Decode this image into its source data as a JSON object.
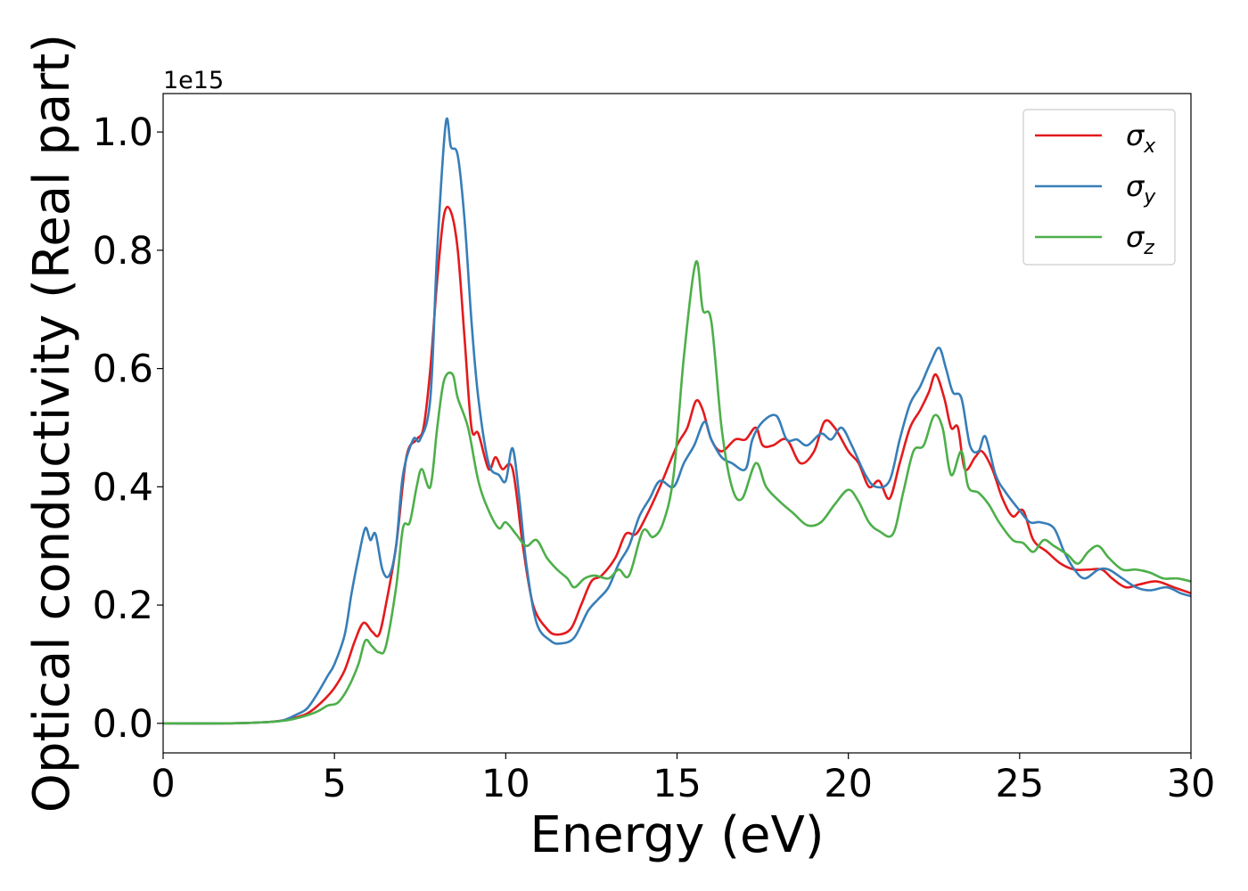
{
  "chart_data": {
    "type": "line",
    "xlabel": "Energy (eV)",
    "ylabel": "Optical conductivity (Real part)",
    "y_offset_text": "1e15",
    "xlim": [
      0,
      30
    ],
    "ylim": [
      -0.05,
      1.065
    ],
    "x_ticks": [
      0,
      5,
      10,
      15,
      20,
      25,
      30
    ],
    "x_tick_labels": [
      "0",
      "5",
      "10",
      "15",
      "20",
      "25",
      "30"
    ],
    "y_ticks": [
      0.0,
      0.2,
      0.4,
      0.6,
      0.8,
      1.0
    ],
    "y_tick_labels": [
      "0.0",
      "0.2",
      "0.4",
      "0.6",
      "0.8",
      "1.0"
    ],
    "grid": false,
    "legend_position": "top-right",
    "series": [
      {
        "name": "σx",
        "label_base": "σ",
        "label_sub": "x",
        "color": "#e41a1c",
        "points": [
          [
            0,
            0
          ],
          [
            2,
            0
          ],
          [
            3,
            0.002
          ],
          [
            3.5,
            0.005
          ],
          [
            4,
            0.012
          ],
          [
            4.3,
            0.02
          ],
          [
            4.7,
            0.04
          ],
          [
            5,
            0.06
          ],
          [
            5.3,
            0.09
          ],
          [
            5.6,
            0.14
          ],
          [
            5.85,
            0.17
          ],
          [
            6.1,
            0.155
          ],
          [
            6.3,
            0.15
          ],
          [
            6.5,
            0.2
          ],
          [
            6.8,
            0.3
          ],
          [
            7.1,
            0.45
          ],
          [
            7.4,
            0.48
          ],
          [
            7.6,
            0.5
          ],
          [
            7.8,
            0.6
          ],
          [
            8.0,
            0.75
          ],
          [
            8.2,
            0.86
          ],
          [
            8.4,
            0.865
          ],
          [
            8.6,
            0.8
          ],
          [
            8.8,
            0.65
          ],
          [
            9.0,
            0.5
          ],
          [
            9.2,
            0.49
          ],
          [
            9.5,
            0.43
          ],
          [
            9.7,
            0.45
          ],
          [
            9.9,
            0.43
          ],
          [
            10.2,
            0.43
          ],
          [
            10.5,
            0.3
          ],
          [
            10.8,
            0.2
          ],
          [
            11.2,
            0.16
          ],
          [
            11.5,
            0.15
          ],
          [
            11.9,
            0.16
          ],
          [
            12.2,
            0.2
          ],
          [
            12.5,
            0.24
          ],
          [
            12.8,
            0.25
          ],
          [
            13.2,
            0.28
          ],
          [
            13.5,
            0.32
          ],
          [
            13.8,
            0.32
          ],
          [
            14.1,
            0.35
          ],
          [
            14.5,
            0.4
          ],
          [
            15.0,
            0.47
          ],
          [
            15.3,
            0.5
          ],
          [
            15.55,
            0.545
          ],
          [
            15.75,
            0.53
          ],
          [
            16.0,
            0.48
          ],
          [
            16.3,
            0.46
          ],
          [
            16.7,
            0.48
          ],
          [
            17.0,
            0.48
          ],
          [
            17.3,
            0.5
          ],
          [
            17.5,
            0.47
          ],
          [
            17.8,
            0.47
          ],
          [
            18.2,
            0.48
          ],
          [
            18.6,
            0.44
          ],
          [
            19.0,
            0.46
          ],
          [
            19.3,
            0.51
          ],
          [
            19.6,
            0.5
          ],
          [
            20.0,
            0.46
          ],
          [
            20.3,
            0.44
          ],
          [
            20.6,
            0.4
          ],
          [
            20.9,
            0.41
          ],
          [
            21.2,
            0.38
          ],
          [
            21.5,
            0.44
          ],
          [
            21.8,
            0.5
          ],
          [
            22.1,
            0.53
          ],
          [
            22.35,
            0.56
          ],
          [
            22.55,
            0.59
          ],
          [
            22.8,
            0.55
          ],
          [
            23.0,
            0.5
          ],
          [
            23.2,
            0.5
          ],
          [
            23.4,
            0.43
          ],
          [
            23.7,
            0.45
          ],
          [
            23.9,
            0.46
          ],
          [
            24.2,
            0.43
          ],
          [
            24.5,
            0.38
          ],
          [
            24.8,
            0.35
          ],
          [
            25.1,
            0.36
          ],
          [
            25.4,
            0.31
          ],
          [
            25.8,
            0.29
          ],
          [
            26.2,
            0.27
          ],
          [
            26.6,
            0.26
          ],
          [
            27.0,
            0.26
          ],
          [
            27.4,
            0.26
          ],
          [
            27.7,
            0.245
          ],
          [
            28.1,
            0.23
          ],
          [
            28.5,
            0.235
          ],
          [
            29.0,
            0.24
          ],
          [
            29.5,
            0.23
          ],
          [
            30,
            0.22
          ]
        ]
      },
      {
        "name": "σy",
        "label_base": "σ",
        "label_sub": "y",
        "color": "#377eb8",
        "points": [
          [
            0,
            0
          ],
          [
            2,
            0
          ],
          [
            3,
            0.002
          ],
          [
            3.5,
            0.005
          ],
          [
            3.9,
            0.015
          ],
          [
            4.2,
            0.025
          ],
          [
            4.5,
            0.05
          ],
          [
            4.8,
            0.08
          ],
          [
            5.0,
            0.1
          ],
          [
            5.3,
            0.15
          ],
          [
            5.5,
            0.22
          ],
          [
            5.7,
            0.28
          ],
          [
            5.9,
            0.33
          ],
          [
            6.05,
            0.31
          ],
          [
            6.2,
            0.32
          ],
          [
            6.4,
            0.26
          ],
          [
            6.6,
            0.25
          ],
          [
            6.8,
            0.3
          ],
          [
            7.0,
            0.42
          ],
          [
            7.3,
            0.48
          ],
          [
            7.5,
            0.48
          ],
          [
            7.8,
            0.55
          ],
          [
            8.0,
            0.8
          ],
          [
            8.25,
            1.015
          ],
          [
            8.4,
            0.975
          ],
          [
            8.6,
            0.96
          ],
          [
            8.8,
            0.85
          ],
          [
            9.0,
            0.68
          ],
          [
            9.2,
            0.55
          ],
          [
            9.5,
            0.44
          ],
          [
            9.8,
            0.42
          ],
          [
            10.0,
            0.41
          ],
          [
            10.2,
            0.465
          ],
          [
            10.4,
            0.38
          ],
          [
            10.6,
            0.27
          ],
          [
            10.9,
            0.17
          ],
          [
            11.3,
            0.14
          ],
          [
            11.6,
            0.135
          ],
          [
            12.0,
            0.145
          ],
          [
            12.4,
            0.19
          ],
          [
            12.7,
            0.21
          ],
          [
            13.0,
            0.23
          ],
          [
            13.3,
            0.27
          ],
          [
            13.6,
            0.3
          ],
          [
            13.9,
            0.35
          ],
          [
            14.2,
            0.38
          ],
          [
            14.5,
            0.41
          ],
          [
            14.9,
            0.4
          ],
          [
            15.2,
            0.44
          ],
          [
            15.5,
            0.47
          ],
          [
            15.8,
            0.51
          ],
          [
            16.0,
            0.48
          ],
          [
            16.3,
            0.45
          ],
          [
            16.6,
            0.44
          ],
          [
            17.0,
            0.43
          ],
          [
            17.2,
            0.48
          ],
          [
            17.5,
            0.51
          ],
          [
            17.9,
            0.52
          ],
          [
            18.2,
            0.48
          ],
          [
            18.5,
            0.48
          ],
          [
            18.8,
            0.47
          ],
          [
            19.2,
            0.49
          ],
          [
            19.5,
            0.48
          ],
          [
            19.8,
            0.5
          ],
          [
            20.1,
            0.47
          ],
          [
            20.5,
            0.42
          ],
          [
            20.8,
            0.4
          ],
          [
            21.2,
            0.41
          ],
          [
            21.5,
            0.48
          ],
          [
            21.8,
            0.54
          ],
          [
            22.1,
            0.57
          ],
          [
            22.4,
            0.61
          ],
          [
            22.65,
            0.635
          ],
          [
            22.85,
            0.6
          ],
          [
            23.05,
            0.56
          ],
          [
            23.3,
            0.55
          ],
          [
            23.55,
            0.47
          ],
          [
            23.8,
            0.46
          ],
          [
            24.0,
            0.485
          ],
          [
            24.3,
            0.42
          ],
          [
            24.6,
            0.39
          ],
          [
            25.0,
            0.36
          ],
          [
            25.3,
            0.34
          ],
          [
            25.6,
            0.34
          ],
          [
            26.0,
            0.33
          ],
          [
            26.3,
            0.29
          ],
          [
            26.6,
            0.26
          ],
          [
            26.9,
            0.245
          ],
          [
            27.3,
            0.26
          ],
          [
            27.6,
            0.26
          ],
          [
            28.0,
            0.245
          ],
          [
            28.4,
            0.23
          ],
          [
            28.8,
            0.225
          ],
          [
            29.3,
            0.23
          ],
          [
            29.7,
            0.22
          ],
          [
            30,
            0.215
          ]
        ]
      },
      {
        "name": "σz",
        "label_base": "σ",
        "label_sub": "z",
        "color": "#4daf4a",
        "points": [
          [
            0,
            0
          ],
          [
            2,
            0
          ],
          [
            3,
            0.002
          ],
          [
            3.6,
            0.005
          ],
          [
            4.0,
            0.01
          ],
          [
            4.5,
            0.02
          ],
          [
            4.8,
            0.03
          ],
          [
            5.1,
            0.035
          ],
          [
            5.4,
            0.06
          ],
          [
            5.7,
            0.1
          ],
          [
            5.9,
            0.14
          ],
          [
            6.1,
            0.13
          ],
          [
            6.3,
            0.12
          ],
          [
            6.5,
            0.13
          ],
          [
            6.8,
            0.23
          ],
          [
            7.0,
            0.33
          ],
          [
            7.2,
            0.34
          ],
          [
            7.4,
            0.4
          ],
          [
            7.55,
            0.43
          ],
          [
            7.8,
            0.4
          ],
          [
            8.0,
            0.5
          ],
          [
            8.2,
            0.58
          ],
          [
            8.45,
            0.59
          ],
          [
            8.6,
            0.55
          ],
          [
            8.9,
            0.5
          ],
          [
            9.2,
            0.41
          ],
          [
            9.5,
            0.36
          ],
          [
            9.8,
            0.33
          ],
          [
            10.0,
            0.34
          ],
          [
            10.3,
            0.32
          ],
          [
            10.6,
            0.3
          ],
          [
            10.9,
            0.31
          ],
          [
            11.2,
            0.28
          ],
          [
            11.5,
            0.26
          ],
          [
            11.8,
            0.245
          ],
          [
            12.0,
            0.23
          ],
          [
            12.3,
            0.245
          ],
          [
            12.6,
            0.25
          ],
          [
            13.0,
            0.245
          ],
          [
            13.3,
            0.26
          ],
          [
            13.6,
            0.25
          ],
          [
            14.0,
            0.325
          ],
          [
            14.3,
            0.315
          ],
          [
            14.6,
            0.34
          ],
          [
            14.9,
            0.42
          ],
          [
            15.2,
            0.62
          ],
          [
            15.55,
            0.78
          ],
          [
            15.75,
            0.7
          ],
          [
            16.0,
            0.68
          ],
          [
            16.3,
            0.5
          ],
          [
            16.6,
            0.4
          ],
          [
            16.9,
            0.38
          ],
          [
            17.3,
            0.44
          ],
          [
            17.6,
            0.4
          ],
          [
            18.0,
            0.375
          ],
          [
            18.4,
            0.355
          ],
          [
            18.8,
            0.335
          ],
          [
            19.2,
            0.34
          ],
          [
            19.6,
            0.37
          ],
          [
            20.0,
            0.395
          ],
          [
            20.3,
            0.375
          ],
          [
            20.6,
            0.34
          ],
          [
            20.9,
            0.325
          ],
          [
            21.3,
            0.32
          ],
          [
            21.6,
            0.39
          ],
          [
            21.9,
            0.46
          ],
          [
            22.2,
            0.47
          ],
          [
            22.5,
            0.52
          ],
          [
            22.75,
            0.5
          ],
          [
            23.0,
            0.42
          ],
          [
            23.3,
            0.46
          ],
          [
            23.5,
            0.4
          ],
          [
            23.8,
            0.39
          ],
          [
            24.1,
            0.37
          ],
          [
            24.4,
            0.34
          ],
          [
            24.8,
            0.31
          ],
          [
            25.1,
            0.305
          ],
          [
            25.4,
            0.29
          ],
          [
            25.7,
            0.31
          ],
          [
            26.0,
            0.3
          ],
          [
            26.4,
            0.285
          ],
          [
            26.7,
            0.27
          ],
          [
            27.0,
            0.29
          ],
          [
            27.3,
            0.3
          ],
          [
            27.6,
            0.28
          ],
          [
            28.0,
            0.26
          ],
          [
            28.4,
            0.26
          ],
          [
            28.8,
            0.255
          ],
          [
            29.2,
            0.245
          ],
          [
            29.6,
            0.245
          ],
          [
            30,
            0.24
          ]
        ]
      }
    ]
  }
}
